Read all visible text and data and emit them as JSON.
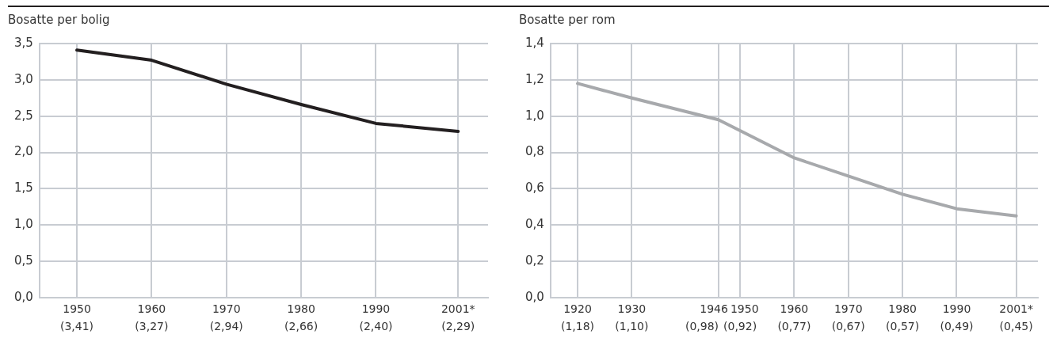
{
  "chart_data": [
    {
      "type": "line",
      "ylabel": "Bosatte per bolig",
      "x": [
        1950,
        1960,
        1970,
        1980,
        1990,
        2001
      ],
      "series": [
        {
          "color": "#231f20",
          "values": [
            3.41,
            3.27,
            2.94,
            2.66,
            2.4,
            2.29
          ]
        }
      ],
      "value_labels": [
        "(3,41)",
        "(3,27)",
        "(2,94)",
        "(2,66)",
        "(2,40)",
        "(2,29)"
      ],
      "xlim": [
        1945,
        2005
      ],
      "xticks": [
        1950,
        1960,
        1970,
        1980,
        1990,
        {
          "value": 2001,
          "label": "2001*"
        }
      ],
      "ylim": [
        0,
        3.5
      ],
      "yticks": [
        {
          "value": 0,
          "label": "0,0"
        },
        {
          "value": 0.5,
          "label": "0,5"
        },
        {
          "value": 1,
          "label": "1,0"
        },
        {
          "value": 1.5,
          "label": "1,5"
        },
        {
          "value": 2,
          "label": "2,0"
        },
        {
          "value": 2.5,
          "label": "2,5"
        },
        {
          "value": 3,
          "label": "3,0"
        },
        {
          "value": 3.5,
          "label": "3,5"
        }
      ],
      "grid": true,
      "legend": false,
      "marker": "none",
      "line_style": "solid"
    },
    {
      "type": "line",
      "ylabel": "Bosatte per rom",
      "x": [
        1920,
        1930,
        1946,
        1950,
        1960,
        1970,
        1980,
        1990,
        2001
      ],
      "series": [
        {
          "color": "#a7a9ac",
          "values": [
            1.18,
            1.1,
            0.98,
            0.92,
            0.77,
            0.67,
            0.57,
            0.49,
            0.45
          ]
        }
      ],
      "value_labels": [
        "(1,18)",
        "(1,10)",
        "(0,98)",
        "(0,92)",
        "(0,77)",
        "(0,67)",
        "(0,57)",
        "(0,49)",
        "(0,45)"
      ],
      "xlim": [
        1915,
        2005
      ],
      "xticks": [
        1920,
        1930,
        1946,
        1950,
        1960,
        1970,
        1980,
        1990,
        {
          "value": 2001,
          "label": "2001*"
        }
      ],
      "ylim": [
        0,
        1.4
      ],
      "yticks": [
        {
          "value": 0,
          "label": "0,0"
        },
        {
          "value": 0.2,
          "label": "0,2"
        },
        {
          "value": 0.4,
          "label": "0,4"
        },
        {
          "value": 0.6,
          "label": "0,6"
        },
        {
          "value": 0.8,
          "label": "0,8"
        },
        {
          "value": 1,
          "label": "1,0"
        },
        {
          "value": 1.2,
          "label": "1,2"
        },
        {
          "value": 1.4,
          "label": "1,4"
        }
      ],
      "grid": true,
      "legend": false,
      "marker": "none",
      "line_style": "solid"
    }
  ]
}
